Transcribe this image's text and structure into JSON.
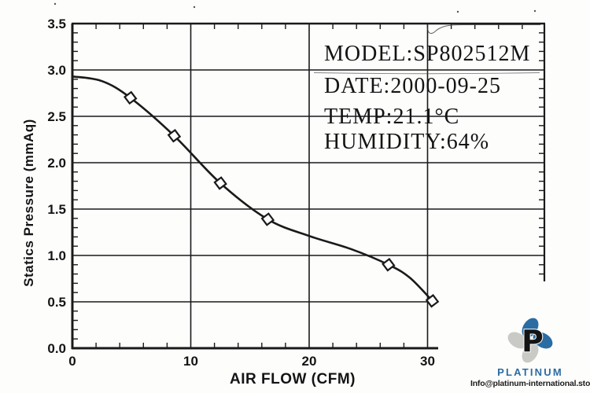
{
  "page": {
    "kind": "scanned fan performance datasheet chart",
    "ink_color": "#1a1a1a",
    "background": "#fdfdfc"
  },
  "chart_data": {
    "type": "line",
    "title": "",
    "xlabel": "AIR FLOW (CFM)",
    "ylabel": "Statics Pressure (mmAq)",
    "xlim": [
      0,
      40
    ],
    "ylim": [
      0,
      3.5
    ],
    "grid": true,
    "x_ticks": [
      0,
      10,
      20,
      30
    ],
    "x_tick_labels": [
      "0",
      "10",
      "20",
      "30"
    ],
    "y_ticks": [
      0.0,
      0.5,
      1.0,
      1.5,
      2.0,
      2.5,
      3.0,
      3.5
    ],
    "y_tick_labels": [
      "0.0",
      "0.5",
      "1.0",
      "1.5",
      "2.0",
      "2.5",
      "3.0",
      "3.5"
    ],
    "x_minor_step": 2,
    "y_minor_step": 0.1,
    "series": [
      {
        "name": "static-pressure-curve",
        "curve": [
          [
            0,
            2.93
          ],
          [
            2.5,
            2.88
          ],
          [
            4.9,
            2.7
          ],
          [
            8.6,
            2.29
          ],
          [
            12.5,
            1.78
          ],
          [
            16.5,
            1.39
          ],
          [
            20,
            1.21
          ],
          [
            23.5,
            1.07
          ],
          [
            26.7,
            0.9
          ],
          [
            28.5,
            0.76
          ],
          [
            30.4,
            0.51
          ]
        ],
        "marker_points": [
          [
            4.9,
            2.7
          ],
          [
            8.6,
            2.29
          ],
          [
            12.5,
            1.78
          ],
          [
            16.5,
            1.39
          ],
          [
            26.7,
            0.9
          ],
          [
            30.4,
            0.51
          ]
        ],
        "marker": "open-diamond"
      }
    ],
    "info_box": {
      "lines": [
        "MODEL:SP802512M",
        "DATE:2000-09-25",
        "TEMP:21.1°C",
        "HUMIDITY:64%"
      ]
    }
  },
  "logo": {
    "brand": "PLATINUM",
    "monogram": "P",
    "email": "Info@platinum-international.store",
    "colors": {
      "blue": "#2b6ca3",
      "deep_blue": "#1f5d94",
      "silver": "#c9c9c5"
    }
  }
}
